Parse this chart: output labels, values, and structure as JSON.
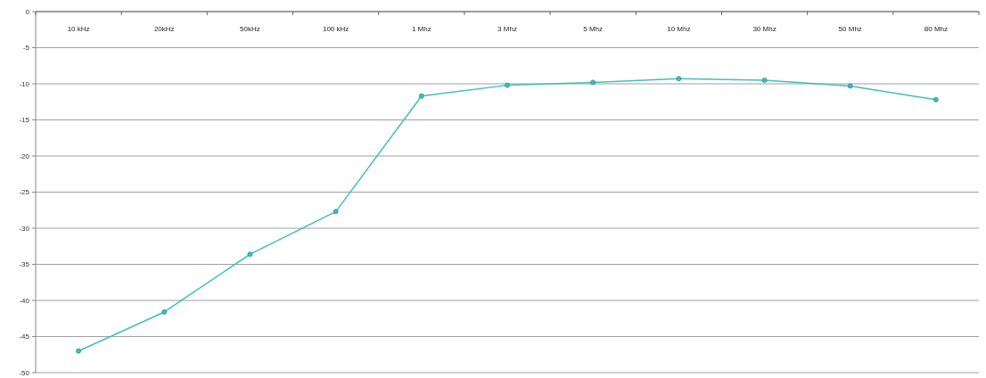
{
  "chart_data": {
    "type": "line",
    "categories": [
      "10 kHz",
      "20kHz",
      "50kHz",
      "100 kHz",
      "1 Mhz",
      "3 Mhz",
      "5 Mhz",
      "10 Mhz",
      "30 Mhz",
      "50 Mhz",
      "80 Mhz"
    ],
    "series": [
      {
        "color": "#3fbfbf",
        "values": [
          -47,
          -41.6,
          -33.6,
          -27.7,
          -11.7,
          -10.2,
          -9.8,
          -9.3,
          -9.5,
          -10.3,
          -12.2
        ]
      }
    ],
    "ylim": [
      -50,
      0
    ],
    "yticks": [
      0,
      -5,
      -10,
      -15,
      -20,
      -25,
      -30,
      -35,
      -40,
      -45,
      -50
    ],
    "grid": "y",
    "marker": "circle",
    "line_style": "solid"
  }
}
